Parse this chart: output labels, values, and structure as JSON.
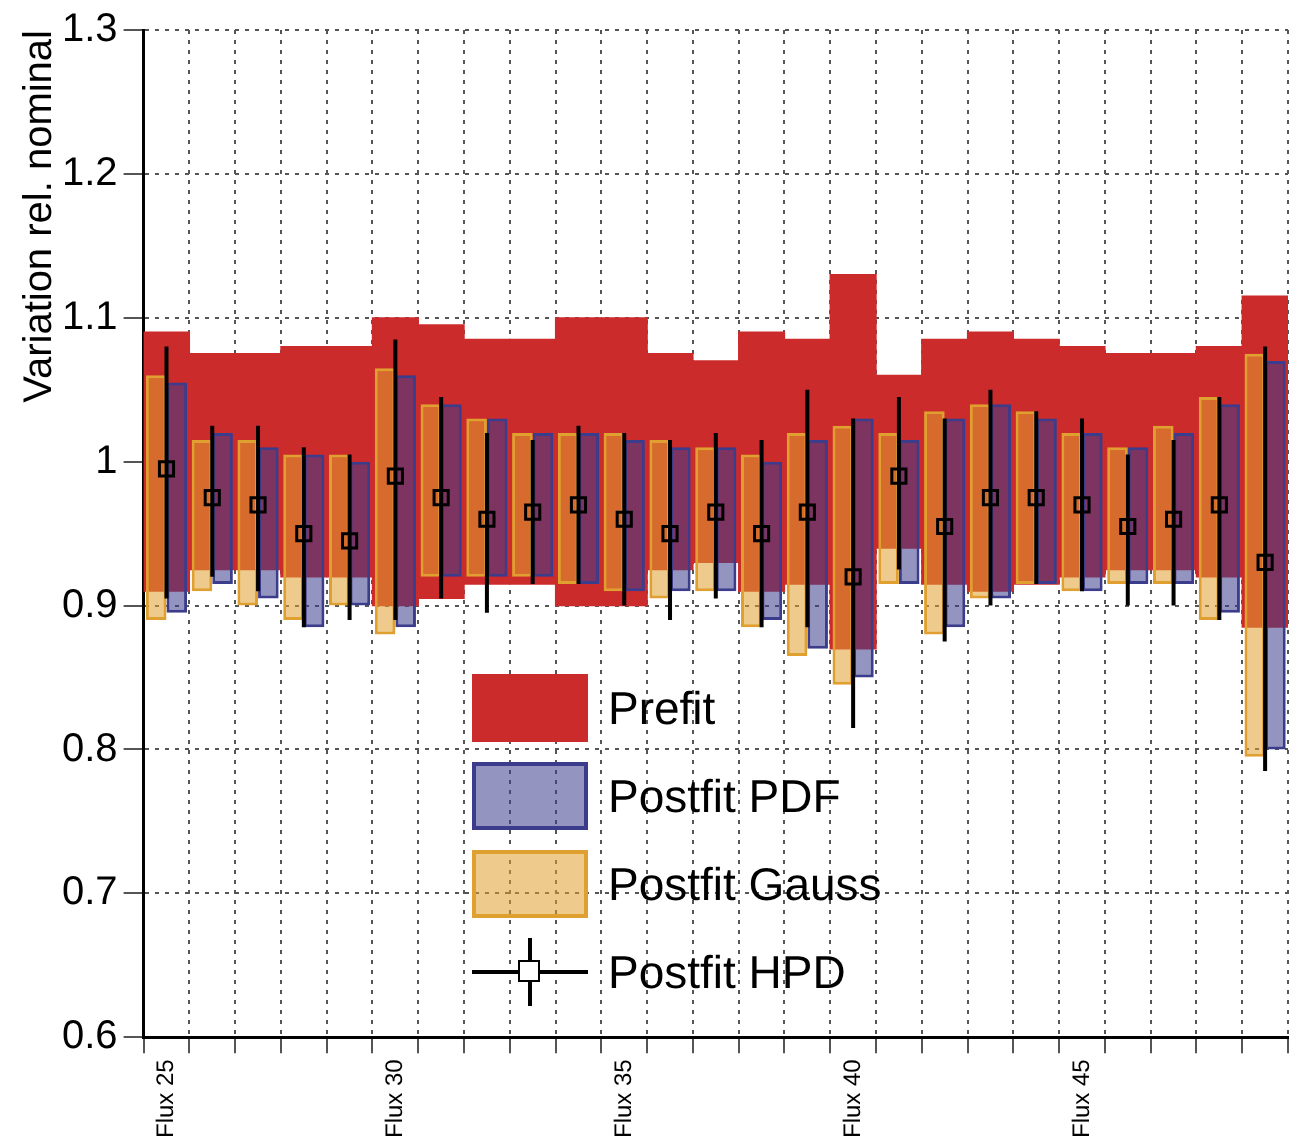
{
  "chart_data": {
    "type": "bar",
    "ylabel": "Variation rel. nominal",
    "categories": [
      "Flux 25",
      null,
      null,
      null,
      null,
      "Flux 30",
      null,
      null,
      null,
      null,
      "Flux 35",
      null,
      null,
      null,
      null,
      "Flux 40",
      null,
      null,
      null,
      null,
      "Flux 45",
      null,
      null,
      null,
      null
    ],
    "series": [
      {
        "name": "Prefit",
        "type": "bar",
        "color": "#cc2b2b",
        "base": [
          0.91,
          0.925,
          0.925,
          0.92,
          0.92,
          0.9,
          0.905,
          0.915,
          0.915,
          0.9,
          0.9,
          0.925,
          0.93,
          0.91,
          0.915,
          0.87,
          0.94,
          0.915,
          0.91,
          0.915,
          0.92,
          0.925,
          0.925,
          0.92,
          0.885
        ],
        "values": [
          0.18,
          0.15,
          0.15,
          0.16,
          0.16,
          0.2,
          0.19,
          0.17,
          0.17,
          0.2,
          0.2,
          0.15,
          0.14,
          0.18,
          0.17,
          0.26,
          0.12,
          0.17,
          0.18,
          0.17,
          0.16,
          0.15,
          0.15,
          0.16,
          0.23
        ]
      },
      {
        "name": "Postfit PDF",
        "type": "bar",
        "color": "#3c3c8c",
        "base": [
          0.895,
          0.915,
          0.905,
          0.885,
          0.9,
          0.885,
          0.92,
          0.92,
          0.92,
          0.915,
          0.91,
          0.91,
          0.91,
          0.89,
          0.87,
          0.85,
          0.915,
          0.885,
          0.905,
          0.915,
          0.91,
          0.915,
          0.915,
          0.895,
          0.8
        ],
        "values": [
          0.16,
          0.105,
          0.105,
          0.12,
          0.1,
          0.175,
          0.12,
          0.11,
          0.1,
          0.105,
          0.105,
          0.1,
          0.1,
          0.11,
          0.145,
          0.18,
          0.1,
          0.145,
          0.135,
          0.115,
          0.11,
          0.095,
          0.105,
          0.145,
          0.27
        ]
      },
      {
        "name": "Postfit Gauss",
        "type": "bar",
        "color": "#e0a030",
        "base": [
          0.89,
          0.91,
          0.9,
          0.89,
          0.9,
          0.88,
          0.92,
          0.92,
          0.92,
          0.915,
          0.91,
          0.905,
          0.91,
          0.885,
          0.865,
          0.845,
          0.915,
          0.88,
          0.905,
          0.915,
          0.91,
          0.915,
          0.915,
          0.89,
          0.795
        ],
        "values": [
          0.17,
          0.105,
          0.115,
          0.115,
          0.105,
          0.185,
          0.12,
          0.11,
          0.1,
          0.105,
          0.11,
          0.11,
          0.1,
          0.12,
          0.155,
          0.18,
          0.105,
          0.155,
          0.135,
          0.12,
          0.11,
          0.095,
          0.11,
          0.155,
          0.28
        ]
      },
      {
        "name": "Postfit HPD",
        "type": "scatter",
        "color": "#000000",
        "marker": "square",
        "values": [
          0.995,
          0.975,
          0.97,
          0.95,
          0.945,
          0.99,
          0.975,
          0.96,
          0.965,
          0.97,
          0.96,
          0.95,
          0.965,
          0.95,
          0.965,
          0.92,
          0.99,
          0.955,
          0.975,
          0.975,
          0.97,
          0.955,
          0.96,
          0.97,
          0.93
        ],
        "errors": [
          [
            0.905,
            1.08
          ],
          [
            0.92,
            1.025
          ],
          [
            0.91,
            1.025
          ],
          [
            0.885,
            1.01
          ],
          [
            0.89,
            1.005
          ],
          [
            0.89,
            1.085
          ],
          [
            0.905,
            1.045
          ],
          [
            0.895,
            1.02
          ],
          [
            0.915,
            1.015
          ],
          [
            0.915,
            1.025
          ],
          [
            0.9,
            1.02
          ],
          [
            0.89,
            1.015
          ],
          [
            0.905,
            1.02
          ],
          [
            0.885,
            1.015
          ],
          [
            0.885,
            1.05
          ],
          [
            0.815,
            1.03
          ],
          [
            0.925,
            1.045
          ],
          [
            0.875,
            1.03
          ],
          [
            0.9,
            1.05
          ],
          [
            0.915,
            1.035
          ],
          [
            0.91,
            1.03
          ],
          [
            0.9,
            1.005
          ],
          [
            0.9,
            1.015
          ],
          [
            0.89,
            1.045
          ],
          [
            0.785,
            1.08
          ]
        ]
      }
    ],
    "ylim": [
      0.6,
      1.3
    ],
    "yticks": [
      0.6,
      0.7,
      0.8,
      0.9,
      1,
      1.1,
      1.2,
      1.3
    ],
    "grid": true,
    "legend": "bottom"
  }
}
